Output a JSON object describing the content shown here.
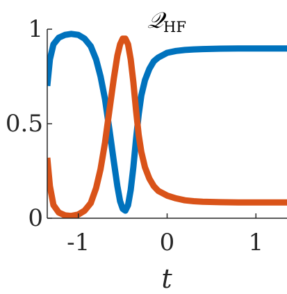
{
  "chart_data": {
    "type": "line",
    "title": {
      "symbol": "𝒬",
      "subscript": "HF"
    },
    "xlabel": "t",
    "ylabel": "",
    "xlim": [
      -1.35,
      1.35
    ],
    "ylim": [
      0,
      1
    ],
    "xticks": [
      -1,
      0,
      1
    ],
    "xtick_labels": [
      "-1",
      "0",
      "1"
    ],
    "yticks": [
      0,
      0.5,
      1
    ],
    "ytick_labels": [
      "0",
      "0.5",
      "1"
    ],
    "grid": false,
    "series": [
      {
        "color": "#0072BD",
        "points": [
          [
            -1.35,
            0.7
          ],
          [
            -1.32,
            0.84
          ],
          [
            -1.28,
            0.92
          ],
          [
            -1.22,
            0.955
          ],
          [
            -1.15,
            0.97
          ],
          [
            -1.08,
            0.975
          ],
          [
            -1.0,
            0.97
          ],
          [
            -0.93,
            0.95
          ],
          [
            -0.86,
            0.91
          ],
          [
            -0.8,
            0.84
          ],
          [
            -0.75,
            0.75
          ],
          [
            -0.7,
            0.63
          ],
          [
            -0.65,
            0.47
          ],
          [
            -0.6,
            0.3
          ],
          [
            -0.56,
            0.17
          ],
          [
            -0.53,
            0.09
          ],
          [
            -0.5,
            0.05
          ],
          [
            -0.47,
            0.04
          ],
          [
            -0.44,
            0.07
          ],
          [
            -0.41,
            0.15
          ],
          [
            -0.38,
            0.27
          ],
          [
            -0.35,
            0.42
          ],
          [
            -0.32,
            0.55
          ],
          [
            -0.29,
            0.65
          ],
          [
            -0.25,
            0.73
          ],
          [
            -0.2,
            0.79
          ],
          [
            -0.15,
            0.83
          ],
          [
            -0.1,
            0.85
          ],
          [
            0.0,
            0.875
          ],
          [
            0.1,
            0.885
          ],
          [
            0.2,
            0.89
          ],
          [
            0.3,
            0.893
          ],
          [
            0.4,
            0.895
          ],
          [
            0.6,
            0.897
          ],
          [
            0.8,
            0.898
          ],
          [
            1.0,
            0.898
          ],
          [
            1.2,
            0.898
          ],
          [
            1.35,
            0.898
          ]
        ]
      },
      {
        "color": "#D95319",
        "points": [
          [
            -1.35,
            0.32
          ],
          [
            -1.32,
            0.17
          ],
          [
            -1.28,
            0.07
          ],
          [
            -1.22,
            0.03
          ],
          [
            -1.15,
            0.015
          ],
          [
            -1.08,
            0.012
          ],
          [
            -1.0,
            0.02
          ],
          [
            -0.93,
            0.04
          ],
          [
            -0.86,
            0.08
          ],
          [
            -0.8,
            0.16
          ],
          [
            -0.75,
            0.26
          ],
          [
            -0.7,
            0.4
          ],
          [
            -0.65,
            0.57
          ],
          [
            -0.6,
            0.74
          ],
          [
            -0.56,
            0.86
          ],
          [
            -0.53,
            0.92
          ],
          [
            -0.5,
            0.95
          ],
          [
            -0.47,
            0.95
          ],
          [
            -0.44,
            0.92
          ],
          [
            -0.41,
            0.84
          ],
          [
            -0.38,
            0.72
          ],
          [
            -0.35,
            0.57
          ],
          [
            -0.32,
            0.44
          ],
          [
            -0.29,
            0.35
          ],
          [
            -0.25,
            0.27
          ],
          [
            -0.2,
            0.21
          ],
          [
            -0.15,
            0.17
          ],
          [
            -0.1,
            0.145
          ],
          [
            0.0,
            0.12
          ],
          [
            0.1,
            0.105
          ],
          [
            0.2,
            0.095
          ],
          [
            0.3,
            0.09
          ],
          [
            0.4,
            0.087
          ],
          [
            0.6,
            0.085
          ],
          [
            0.8,
            0.084
          ],
          [
            1.0,
            0.084
          ],
          [
            1.2,
            0.084
          ],
          [
            1.35,
            0.084
          ]
        ]
      }
    ]
  }
}
